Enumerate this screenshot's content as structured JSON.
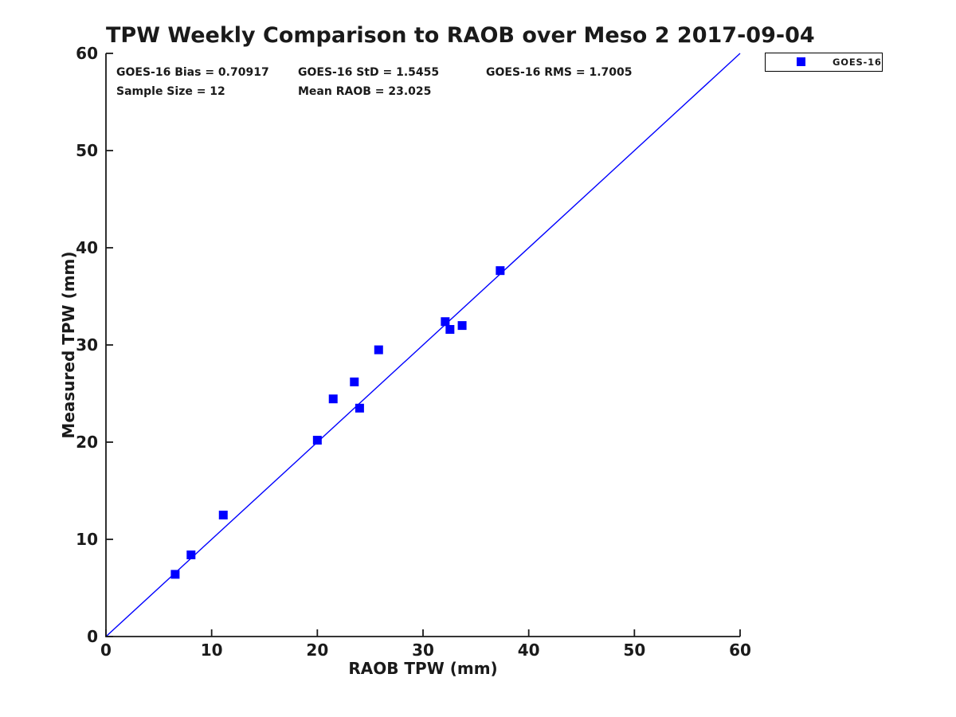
{
  "chart_data": {
    "type": "scatter",
    "title": "TPW Weekly Comparison to RAOB over Meso 2 2017-09-04",
    "xlabel": "RAOB TPW (mm)",
    "ylabel": "Measured TPW (mm)",
    "xlim": [
      0,
      60
    ],
    "ylim": [
      0,
      60
    ],
    "x_ticks": [
      0,
      10,
      20,
      30,
      40,
      50,
      60
    ],
    "y_ticks": [
      0,
      10,
      20,
      30,
      40,
      50,
      60
    ],
    "grid": false,
    "stats": {
      "bias": "GOES-16 Bias = 0.70917",
      "std": "GOES-16 StD = 1.5455",
      "rms": "GOES-16 RMS = 1.7005",
      "sample_size": "Sample Size = 12",
      "mean_raob": "Mean RAOB = 23.025"
    },
    "legend": {
      "label": "GOES-16",
      "marker": "square",
      "marker_color": "#0000FF",
      "position": "top-right-outside"
    },
    "series": [
      {
        "name": "GOES-16",
        "marker": "square",
        "marker_size_px": 11,
        "color": "#0000FF",
        "points": [
          [
            6.55,
            6.4
          ],
          [
            8.05,
            8.4
          ],
          [
            11.1,
            12.5
          ],
          [
            20.0,
            20.2
          ],
          [
            21.5,
            24.45
          ],
          [
            23.5,
            26.2
          ],
          [
            24.0,
            23.5
          ],
          [
            25.8,
            29.5
          ],
          [
            32.1,
            32.4
          ],
          [
            32.55,
            31.6
          ],
          [
            33.7,
            32.0
          ],
          [
            37.3,
            37.65
          ]
        ]
      }
    ],
    "reference_line": {
      "from": [
        0,
        0
      ],
      "to": [
        60,
        60
      ],
      "color": "#0000FF"
    },
    "axis_color": "#1a1a1a",
    "background_color": "#FFFFFF"
  }
}
